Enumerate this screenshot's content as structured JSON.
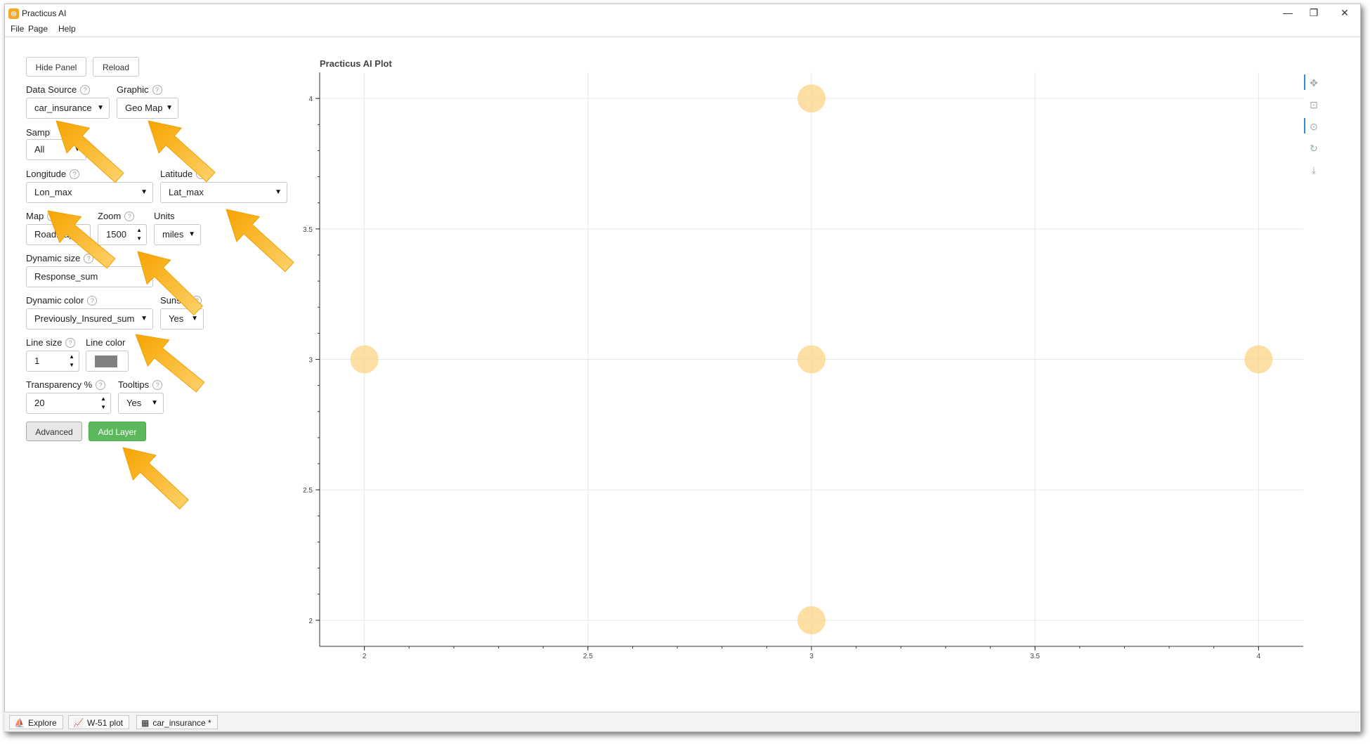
{
  "window": {
    "title": "Practicus AI",
    "app_icon": "practicus-logo-icon"
  },
  "menu": [
    "File",
    "Page",
    "Help"
  ],
  "panel": {
    "hide_panel": "Hide Panel",
    "reload": "Reload",
    "data_source": {
      "label": "Data Source",
      "value": "car_insurance"
    },
    "graphic": {
      "label": "Graphic",
      "value": "Geo Map"
    },
    "sampling": {
      "label": "Sampling",
      "value": "All"
    },
    "longitude": {
      "label": "Longitude",
      "value": "Lon_max"
    },
    "latitude": {
      "label": "Latitude",
      "value": "Lat_max"
    },
    "map": {
      "label": "Map",
      "value": "Roadmap"
    },
    "zoom": {
      "label": "Zoom",
      "value": "1500"
    },
    "units": {
      "label": "Units",
      "value": "miles"
    },
    "dynamic_size": {
      "label": "Dynamic size",
      "value": "Response_sum"
    },
    "dynamic_color": {
      "label": "Dynamic color",
      "value": "Previously_Insured_sum"
    },
    "sunset": {
      "label": "Sunset",
      "value": "Yes"
    },
    "line_size": {
      "label": "Line size",
      "value": "1"
    },
    "line_color": {
      "label": "Line color",
      "value": "#808080"
    },
    "transparency": {
      "label": "Transparency %",
      "value": "20"
    },
    "tooltips": {
      "label": "Tooltips",
      "value": "Yes"
    },
    "advanced": "Advanced",
    "add_layer": "Add Layer"
  },
  "plot": {
    "title": "Practicus AI Plot",
    "toolbar": [
      "pan-icon",
      "box-zoom-icon",
      "wheel-zoom-icon",
      "reset-icon",
      "save-icon"
    ]
  },
  "chart_data": {
    "type": "scatter",
    "title": "Practicus AI Plot",
    "xlabel": "",
    "ylabel": "",
    "xlim": [
      1.9,
      4.1
    ],
    "ylim": [
      1.9,
      4.1
    ],
    "x_ticks": [
      "2",
      "2.5",
      "3",
      "3.5",
      "4"
    ],
    "y_ticks": [
      "2",
      "2.5",
      "3",
      "3.5",
      "4"
    ],
    "grid": true,
    "marker_color": "#fcd68c",
    "points": [
      {
        "x": 3,
        "y": 4
      },
      {
        "x": 2,
        "y": 3
      },
      {
        "x": 3,
        "y": 3
      },
      {
        "x": 4,
        "y": 3
      },
      {
        "x": 3,
        "y": 2
      }
    ]
  },
  "tabs": [
    {
      "label": "Explore",
      "icon": "explore-icon"
    },
    {
      "label": "W-51 plot",
      "icon": "plot-icon"
    },
    {
      "label": "car_insurance *",
      "icon": "table-icon"
    }
  ],
  "accent_color": "#f5a623",
  "add_layer_color": "#5cb85c"
}
